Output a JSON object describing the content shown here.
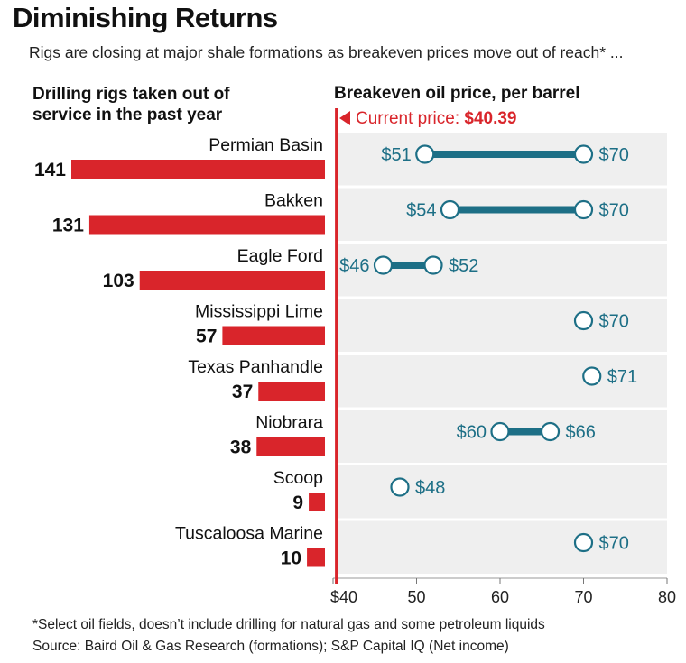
{
  "header": {
    "title": "Diminishing Returns",
    "subtitle": "Rigs are closing at major shale formations as breakeven prices move out of reach* ..."
  },
  "left_panel": {
    "title_line1": "Drilling rigs taken out of",
    "title_line2": "service in the past year"
  },
  "right_panel": {
    "title": "Breakeven oil price, per barrel",
    "current_price_label": "Current price: ",
    "current_price_value": "$40.39"
  },
  "footer": {
    "note": "*Select oil fields, doesn’t include drilling for natural gas and some petroleum liquids",
    "source": "Source: Baird Oil & Gas Research (formations); S&P Capital IQ (Net income)"
  },
  "colors": {
    "bar_red": "#d9252b",
    "dumbbell_teal": "#1d6f86",
    "panel_gray": "#efefef",
    "current_price_red": "#d9252b"
  },
  "chart_data": [
    {
      "type": "bar",
      "orientation": "horizontal",
      "title": "Drilling rigs taken out of service in the past year",
      "categories": [
        "Permian Basin",
        "Bakken",
        "Eagle Ford",
        "Mississippi Lime",
        "Texas Panhandle",
        "Niobrara",
        "Scoop",
        "Tuscaloosa Marine"
      ],
      "values": [
        141,
        131,
        103,
        57,
        37,
        38,
        9,
        10
      ],
      "value_labels": [
        "141",
        "131",
        "103",
        "57",
        "37",
        "38",
        "9",
        "10"
      ]
    },
    {
      "type": "dumbbell",
      "title": "Breakeven oil price, per barrel",
      "categories": [
        "Permian Basin",
        "Bakken",
        "Eagle Ford",
        "Mississippi Lime",
        "Texas Panhandle",
        "Niobrara",
        "Scoop",
        "Tuscaloosa Marine"
      ],
      "ranges": [
        {
          "low": 51,
          "high": 70,
          "low_label": "$51",
          "high_label": "$70"
        },
        {
          "low": 54,
          "high": 70,
          "low_label": "$54",
          "high_label": "$70"
        },
        {
          "low": 46,
          "high": 52,
          "low_label": "$46",
          "high_label": "$52"
        },
        {
          "low": 70,
          "high": null,
          "low_label": "$70",
          "high_label": ""
        },
        {
          "low": 71,
          "high": null,
          "low_label": "$71",
          "high_label": ""
        },
        {
          "low": 60,
          "high": 66,
          "low_label": "$60",
          "high_label": "$66"
        },
        {
          "low": 48,
          "high": null,
          "low_label": "$48",
          "high_label": ""
        },
        {
          "low": 70,
          "high": null,
          "low_label": "$70",
          "high_label": ""
        }
      ],
      "xlim": [
        40,
        80
      ],
      "ticks": [
        40,
        50,
        60,
        70,
        80
      ],
      "tick_labels": [
        "$40",
        "50",
        "60",
        "70",
        "80"
      ],
      "current_price": 40.39
    }
  ]
}
